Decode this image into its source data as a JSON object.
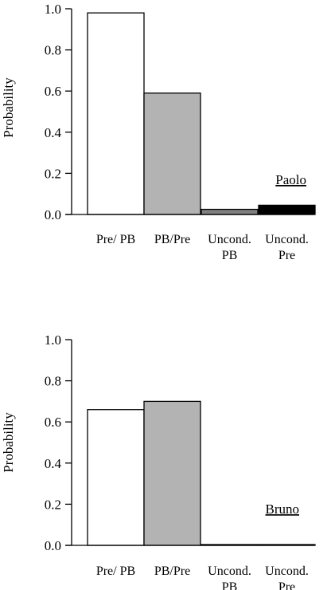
{
  "chart_data": [
    {
      "type": "bar",
      "panel_label": "Paolo",
      "ylabel": "Probability",
      "xlabel": "",
      "ylim": [
        0,
        1.0
      ],
      "yticks": [
        "0.0",
        "0.2",
        "0.4",
        "0.6",
        "0.8",
        "1.0"
      ],
      "categories": [
        "Pre/ PB",
        "PB/Pre",
        "Uncond. PB",
        "Uncond. Pre"
      ],
      "category_lines": [
        [
          "Pre/ PB"
        ],
        [
          "PB/Pre"
        ],
        [
          "Uncond.",
          "PB"
        ],
        [
          "Uncond.",
          "Pre"
        ]
      ],
      "values": [
        0.98,
        0.59,
        0.025,
        0.045
      ],
      "colors": [
        "#ffffff",
        "#b3b3b3",
        "#808080",
        "#000000"
      ],
      "grid": false
    },
    {
      "type": "bar",
      "panel_label": "Bruno",
      "ylabel": "Probability",
      "xlabel": "",
      "ylim": [
        0,
        1.0
      ],
      "yticks": [
        "0.0",
        "0.2",
        "0.4",
        "0.6",
        "0.8",
        "1.0"
      ],
      "categories": [
        "Pre/ PB",
        "PB/Pre",
        "Uncond. PB",
        "Uncond. Pre"
      ],
      "category_lines": [
        [
          "Pre/ PB"
        ],
        [
          "PB/Pre"
        ],
        [
          "Uncond.",
          "PB"
        ],
        [
          "Uncond.",
          "Pre"
        ]
      ],
      "values": [
        0.66,
        0.7,
        0.003,
        0.003
      ],
      "colors": [
        "#ffffff",
        "#b3b3b3",
        "#808080",
        "#000000"
      ],
      "grid": false
    }
  ]
}
